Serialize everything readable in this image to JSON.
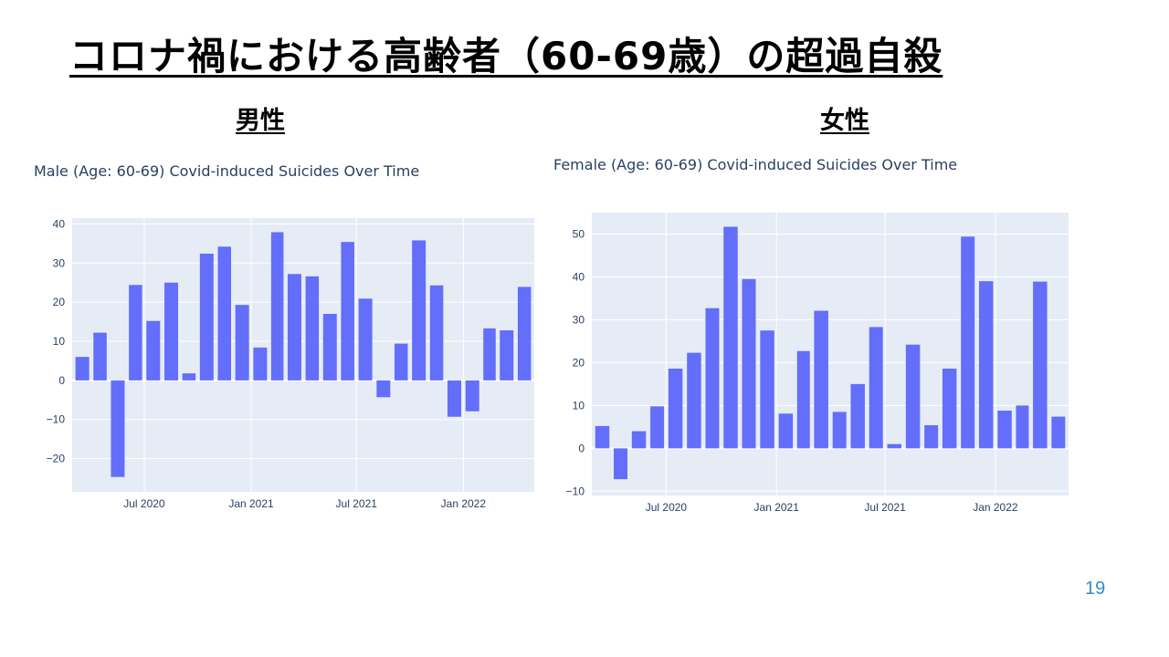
{
  "slide": {
    "title": "コロナ禍における高齢者（60-69歳）の超過自殺",
    "male_heading": "男性",
    "female_heading": "女性",
    "page_number": "19"
  },
  "colors": {
    "plot_bg": "#e5ecf6",
    "bar": "#636efa",
    "text": "#2a3f5f",
    "grid": "#ffffff"
  },
  "chart_data": [
    {
      "type": "bar",
      "title": "Male (Age: 60-69) Covid-induced Suicides Over Time",
      "x": [
        "2020-03",
        "2020-04",
        "2020-05",
        "2020-06",
        "2020-07",
        "2020-08",
        "2020-09",
        "2020-10",
        "2020-11",
        "2020-12",
        "2021-01",
        "2021-02",
        "2021-03",
        "2021-04",
        "2021-05",
        "2021-06",
        "2021-07",
        "2021-08",
        "2021-09",
        "2021-10",
        "2021-11",
        "2021-12",
        "2022-01",
        "2022-02",
        "2022-03",
        "2022-04"
      ],
      "values": [
        6,
        12.2,
        -24.7,
        24.4,
        15.2,
        25,
        1.8,
        32.4,
        34.2,
        19.3,
        8.4,
        37.9,
        27.2,
        26.6,
        17,
        35.4,
        20.9,
        -4.3,
        9.4,
        35.8,
        24.3,
        -9.3,
        -7.9,
        13.3,
        12.8,
        23.9
      ],
      "ylim": [
        -28.5,
        41.5
      ],
      "yticks": [
        "40",
        "30",
        "20",
        "10",
        "0",
        "−10",
        "−20"
      ],
      "ytick_values": [
        40,
        30,
        20,
        10,
        0,
        -10,
        -20
      ],
      "xticks": [
        "Jul 2020",
        "Jan 2021",
        "Jul 2021",
        "Jan 2022"
      ],
      "xtick_dates": [
        "2020-07-01",
        "2021-01-01",
        "2021-07-01",
        "2022-01-01"
      ],
      "xlabel": "",
      "ylabel": "",
      "grid": true,
      "legend": false
    },
    {
      "type": "bar",
      "title": "Female (Age: 60-69) Covid-induced Suicides Over Time",
      "x": [
        "2020-03",
        "2020-04",
        "2020-05",
        "2020-06",
        "2020-07",
        "2020-08",
        "2020-09",
        "2020-10",
        "2020-11",
        "2020-12",
        "2021-01",
        "2021-02",
        "2021-03",
        "2021-04",
        "2021-05",
        "2021-06",
        "2021-07",
        "2021-08",
        "2021-09",
        "2021-10",
        "2021-11",
        "2021-12",
        "2022-01",
        "2022-02",
        "2022-03",
        "2022-04"
      ],
      "values": [
        5.2,
        -7.2,
        4,
        9.8,
        18.6,
        22.3,
        32.7,
        51.7,
        39.5,
        27.5,
        8.1,
        22.7,
        32.1,
        8.5,
        15,
        28.3,
        1,
        24.2,
        5.4,
        18.6,
        49.4,
        39,
        8.8,
        10,
        38.9,
        7.4
      ],
      "ylim": [
        -11,
        55
      ],
      "yticks": [
        "50",
        "40",
        "30",
        "20",
        "10",
        "0",
        "−10"
      ],
      "ytick_values": [
        50,
        40,
        30,
        20,
        10,
        0,
        -10
      ],
      "xticks": [
        "Jul 2020",
        "Jan 2021",
        "Jul 2021",
        "Jan 2022"
      ],
      "xtick_dates": [
        "2020-07-01",
        "2021-01-01",
        "2021-07-01",
        "2022-01-01"
      ],
      "xlabel": "",
      "ylabel": "",
      "grid": true,
      "legend": false
    }
  ]
}
